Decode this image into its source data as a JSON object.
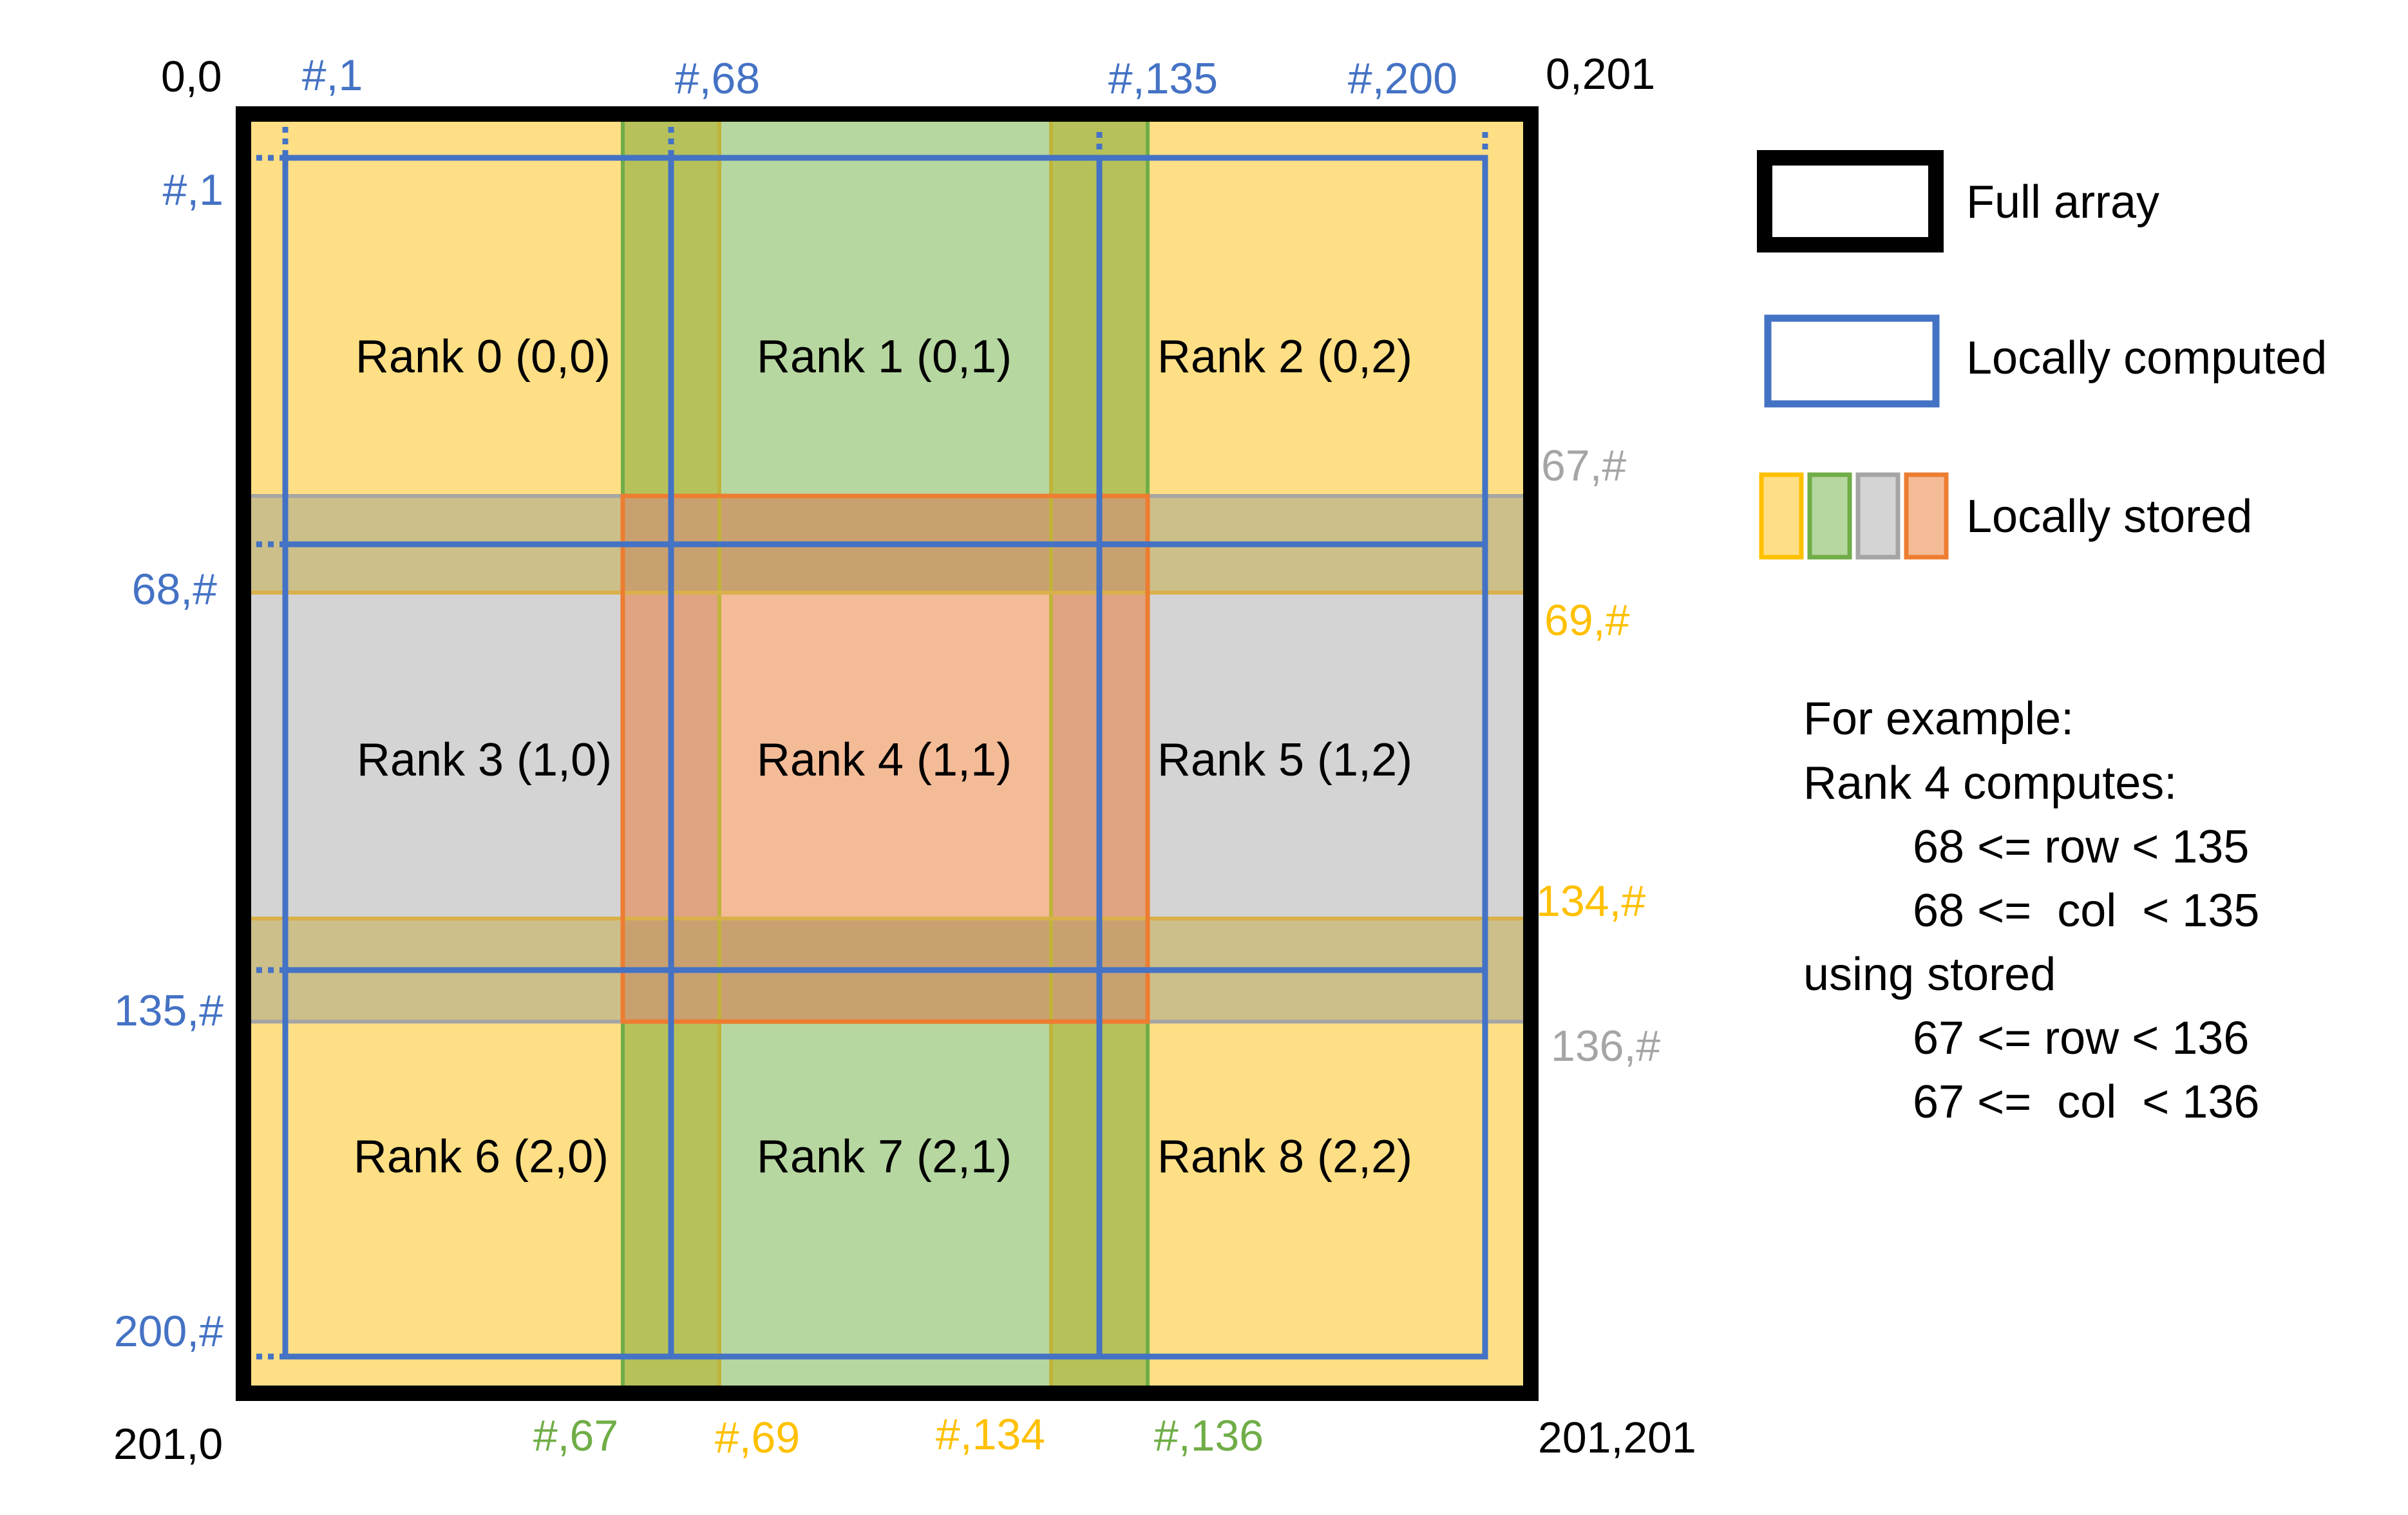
{
  "colors": {
    "full_array_border": "#000000",
    "computed_blue": "#4472c4",
    "stored_yellow": "#ffc000",
    "yellow_fill": "#ffdf85",
    "stored_green": "#70ad47",
    "green_fill": "#b7d7a1",
    "stored_gray": "#a5a5a5",
    "gray_fill": "#d4d4d4",
    "stored_orange": "#ed7d31",
    "orange_fill": "#f4bb97",
    "halo_tan": "#cdbf8a",
    "halo_olive": "#b6c15a",
    "overlap_halo": "#c9a070",
    "overlap_orange_halo": "#e0a482",
    "label_green": "#70ad47",
    "label_yellow": "#ffc000",
    "label_gray": "#a5a5a5",
    "label_blue": "#4472c4"
  },
  "corners": {
    "top_left": "0,0",
    "top_right": "0,201",
    "bottom_left": "201,0",
    "bottom_right": "201,201"
  },
  "ranks": [
    "Rank 0 (0,0)",
    "Rank 1 (0,1)",
    "Rank 2 (0,2)",
    "Rank 3 (1,0)",
    "Rank 4 (1,1)",
    "Rank 5 (1,2)",
    "Rank 6 (2,0)",
    "Rank 7 (2,1)",
    "Rank 8 (2,2)"
  ],
  "top_labels": [
    "#,1",
    "#,68",
    "#,135",
    "#,200"
  ],
  "left_labels": [
    "#,1",
    "68,#",
    "135,#",
    "200,#"
  ],
  "right_labels": {
    "r67": "67,#",
    "r69": "69,#",
    "r134": "134,#",
    "r136": "136,#"
  },
  "bottom_labels": {
    "c67": "#,67",
    "c69": "#,69",
    "c134": "#,134",
    "c136": "#,136"
  },
  "legend": {
    "full_array": "Full array",
    "locally_computed": "Locally computed",
    "locally_stored": "Locally stored"
  },
  "example": {
    "line1": "For example:",
    "line2": "Rank 4 computes:",
    "line3": "68 <= row < 135",
    "line4": "68 <=  col  < 135",
    "line5": "using stored",
    "line6": "67 <= row < 136",
    "line7": "67 <=  col  < 136"
  }
}
